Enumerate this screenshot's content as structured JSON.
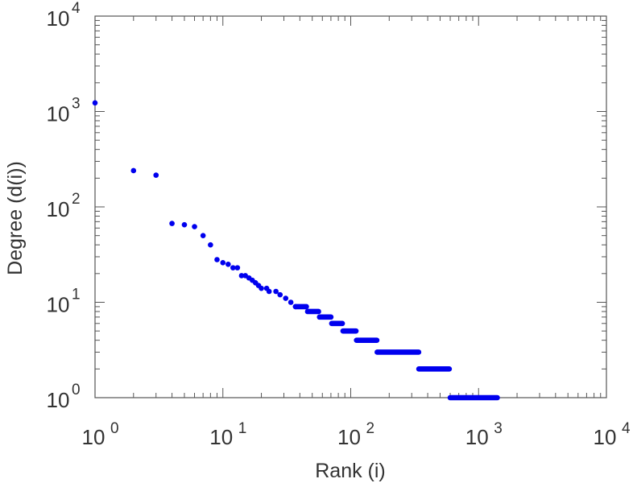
{
  "chart_data": {
    "type": "scatter",
    "title": "",
    "xlabel": "Rank (i)",
    "ylabel": "Degree (d(i))",
    "xscale": "log",
    "yscale": "log",
    "xlim": [
      1,
      10000
    ],
    "ylim": [
      1,
      10000
    ],
    "grid": false,
    "marker_color": "#0000ee",
    "x_ticks": [
      {
        "base": "10",
        "exp": "0"
      },
      {
        "base": "10",
        "exp": "1"
      },
      {
        "base": "10",
        "exp": "2"
      },
      {
        "base": "10",
        "exp": "3"
      },
      {
        "base": "10",
        "exp": "4"
      }
    ],
    "y_ticks": [
      {
        "base": "10",
        "exp": "0"
      },
      {
        "base": "10",
        "exp": "1"
      },
      {
        "base": "10",
        "exp": "2"
      },
      {
        "base": "10",
        "exp": "3"
      },
      {
        "base": "10",
        "exp": "4"
      }
    ],
    "points": [
      {
        "x": 1,
        "y": 1230
      },
      {
        "x": 2,
        "y": 240
      },
      {
        "x": 3,
        "y": 215
      },
      {
        "x": 4,
        "y": 67
      },
      {
        "x": 5,
        "y": 65
      },
      {
        "x": 6,
        "y": 62
      },
      {
        "x": 7,
        "y": 50
      },
      {
        "x": 8,
        "y": 40
      },
      {
        "x": 9,
        "y": 28
      },
      {
        "x": 10,
        "y": 26
      },
      {
        "x": 11,
        "y": 25
      },
      {
        "x": 12,
        "y": 23
      },
      {
        "x": 13,
        "y": 23
      },
      {
        "x": 14,
        "y": 19
      },
      {
        "x": 15,
        "y": 19
      },
      {
        "x": 16,
        "y": 18
      },
      {
        "x": 17,
        "y": 17
      },
      {
        "x": 18,
        "y": 16
      },
      {
        "x": 19,
        "y": 15
      },
      {
        "x": 20,
        "y": 14
      },
      {
        "x": 22,
        "y": 14
      },
      {
        "x": 23,
        "y": 13
      },
      {
        "x": 26,
        "y": 13
      },
      {
        "x": 28,
        "y": 12
      },
      {
        "x": 31,
        "y": 11
      },
      {
        "x": 34,
        "y": 10
      },
      {
        "x": 37,
        "y": 9
      }
    ],
    "runs": [
      {
        "y": 9,
        "x_start": 37,
        "x_end": 45
      },
      {
        "y": 8,
        "x_start": 46,
        "x_end": 56
      },
      {
        "y": 7,
        "x_start": 57,
        "x_end": 70
      },
      {
        "y": 6,
        "x_start": 71,
        "x_end": 86
      },
      {
        "y": 5,
        "x_start": 87,
        "x_end": 110
      },
      {
        "y": 4,
        "x_start": 111,
        "x_end": 160
      },
      {
        "y": 3,
        "x_start": 161,
        "x_end": 340
      },
      {
        "y": 2,
        "x_start": 341,
        "x_end": 590
      },
      {
        "y": 1,
        "x_start": 600,
        "x_end": 1400
      }
    ]
  }
}
